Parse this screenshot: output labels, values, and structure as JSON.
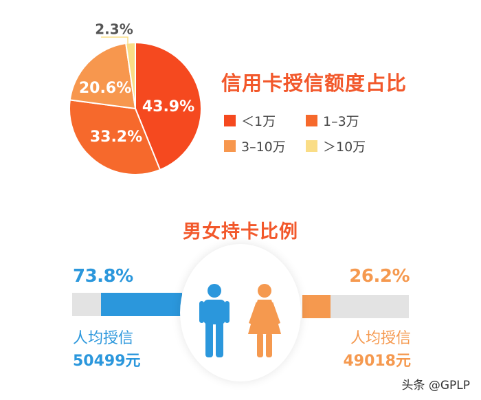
{
  "chart_data": [
    {
      "type": "pie",
      "title": "信用卡授信额度占比",
      "categories": [
        "<1万",
        "1-3万",
        "3-10万",
        ">10万"
      ],
      "values": [
        43.9,
        33.2,
        20.6,
        2.3
      ],
      "labels": [
        "43.9%",
        "33.2%",
        "20.6%",
        "2.3%"
      ],
      "colors": [
        "#f5491f",
        "#f6692c",
        "#f7974e",
        "#fadd86"
      ],
      "legend": "right",
      "grid": false
    },
    {
      "type": "bar",
      "title": "男女持卡比例",
      "categories": [
        "男",
        "女"
      ],
      "values": [
        73.8,
        26.2
      ],
      "labels": [
        "73.8%",
        "26.2%"
      ],
      "colors": [
        "#2b97dc",
        "#f5994f"
      ],
      "ylim": [
        0,
        100
      ]
    }
  ],
  "pie": {
    "title": "信用卡授信额度占比",
    "legend": [
      {
        "label": "＜1万",
        "color": "#f5491f"
      },
      {
        "label": "1–3万",
        "color": "#f6692c"
      },
      {
        "label": "3–10万",
        "color": "#f7974e"
      },
      {
        "label": "＞10万",
        "color": "#fadd86"
      }
    ]
  },
  "gender": {
    "title": "男女持卡比例",
    "male": {
      "percent": "73.8%",
      "share": 73.8,
      "avg_label": "人均授信",
      "avg_value": "50499元",
      "color": "#2b97dc",
      "icon": "male-person-icon"
    },
    "female": {
      "percent": "26.2%",
      "share": 26.2,
      "avg_label": "人均授信",
      "avg_value": "49018元",
      "color": "#f5994f",
      "icon": "female-person-icon"
    }
  },
  "watermark": "头条 @GPLP"
}
